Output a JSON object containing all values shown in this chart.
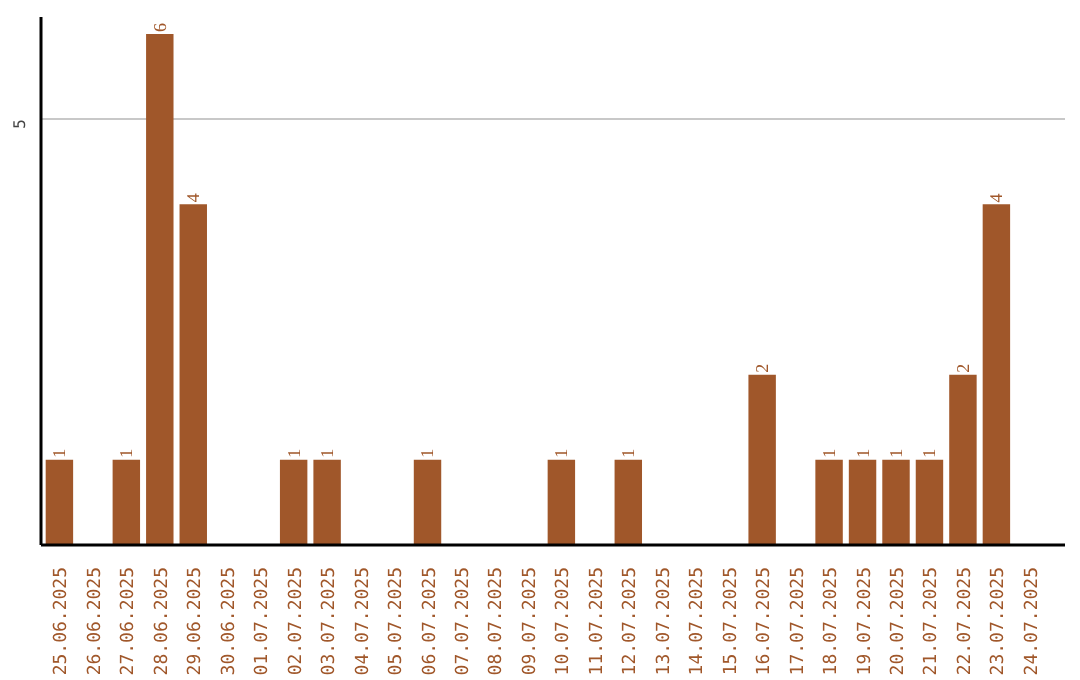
{
  "chart_data": {
    "type": "bar",
    "categories": [
      "25.06.2025",
      "26.06.2025",
      "27.06.2025",
      "28.06.2025",
      "29.06.2025",
      "30.06.2025",
      "01.07.2025",
      "02.07.2025",
      "03.07.2025",
      "04.07.2025",
      "05.07.2025",
      "06.07.2025",
      "07.07.2025",
      "08.07.2025",
      "09.07.2025",
      "10.07.2025",
      "11.07.2025",
      "12.07.2025",
      "13.07.2025",
      "14.07.2025",
      "15.07.2025",
      "16.07.2025",
      "17.07.2025",
      "18.07.2025",
      "19.07.2025",
      "20.07.2025",
      "21.07.2025",
      "22.07.2025",
      "23.07.2025",
      "24.07.2025"
    ],
    "values": [
      1,
      0,
      1,
      6,
      4,
      0,
      0,
      1,
      1,
      0,
      0,
      1,
      0,
      0,
      0,
      1,
      0,
      1,
      0,
      0,
      0,
      2,
      0,
      1,
      1,
      1,
      1,
      2,
      4,
      0
    ],
    "value_labels": [
      "1",
      null,
      "1",
      "6",
      "4",
      null,
      null,
      "1",
      "1",
      null,
      null,
      "1",
      null,
      null,
      null,
      "1",
      null,
      "1",
      null,
      null,
      null,
      "2",
      null,
      "1",
      "1",
      "1",
      "1",
      "2",
      "4",
      null
    ],
    "color": "#a0572a",
    "ylim": [
      0,
      6.2
    ],
    "yticks": [
      5
    ],
    "grid": "y"
  }
}
